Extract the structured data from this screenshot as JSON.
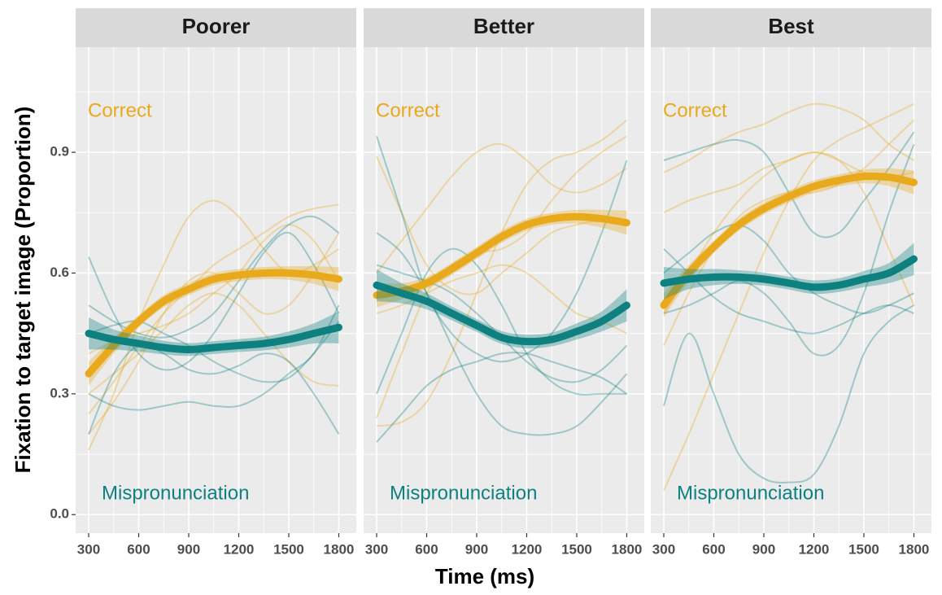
{
  "axis_titles": {
    "x": "Time (ms)",
    "y": "Fixation to target image (Proportion)"
  },
  "chart_data": [
    {
      "type": "line",
      "title": "Poorer",
      "x": [
        300,
        450,
        600,
        750,
        900,
        1050,
        1200,
        1350,
        1500,
        1650,
        1800
      ],
      "xlim": [
        222,
        1905
      ],
      "ylim": [
        -0.046,
        1.161
      ],
      "xticks": [
        300,
        600,
        900,
        1200,
        1500,
        1800
      ],
      "yticks": [
        {
          "value": 0,
          "label": "0.0"
        },
        0.3,
        0.6,
        0.9
      ],
      "grid": true,
      "series": [
        {
          "name": "Correct",
          "color": "#E9A91C",
          "values": [
            0.35,
            0.42,
            0.48,
            0.53,
            0.56,
            0.585,
            0.595,
            0.6,
            0.6,
            0.595,
            0.585
          ],
          "lower": [
            0.32,
            0.4,
            0.465,
            0.515,
            0.545,
            0.57,
            0.58,
            0.585,
            0.583,
            0.573,
            0.555
          ],
          "upper": [
            0.38,
            0.44,
            0.495,
            0.545,
            0.575,
            0.6,
            0.61,
            0.615,
            0.617,
            0.617,
            0.615
          ],
          "individuals": [
            [
              0.16,
              0.3,
              0.48,
              0.62,
              0.74,
              0.78,
              0.74,
              0.66,
              0.6,
              0.62,
              0.66
            ],
            [
              0.25,
              0.33,
              0.42,
              0.5,
              0.56,
              0.62,
              0.66,
              0.7,
              0.74,
              0.76,
              0.77
            ],
            [
              0.4,
              0.43,
              0.45,
              0.47,
              0.5,
              0.55,
              0.6,
              0.68,
              0.72,
              0.68,
              0.58
            ],
            [
              0.3,
              0.35,
              0.4,
              0.46,
              0.52,
              0.55,
              0.52,
              0.45,
              0.38,
              0.33,
              0.32
            ],
            [
              0.2,
              0.28,
              0.38,
              0.5,
              0.58,
              0.6,
              0.55,
              0.5,
              0.52,
              0.6,
              0.7
            ]
          ]
        },
        {
          "name": "Mispronunciation",
          "color": "#0E8080",
          "values": [
            0.45,
            0.435,
            0.425,
            0.415,
            0.41,
            0.415,
            0.42,
            0.425,
            0.435,
            0.45,
            0.465
          ],
          "lower": [
            0.41,
            0.41,
            0.405,
            0.398,
            0.394,
            0.399,
            0.404,
            0.408,
            0.415,
            0.425,
            0.425
          ],
          "upper": [
            0.49,
            0.46,
            0.445,
            0.432,
            0.426,
            0.431,
            0.436,
            0.442,
            0.455,
            0.475,
            0.505
          ],
          "individuals": [
            [
              0.64,
              0.5,
              0.4,
              0.36,
              0.38,
              0.45,
              0.55,
              0.65,
              0.7,
              0.62,
              0.5
            ],
            [
              0.3,
              0.27,
              0.26,
              0.27,
              0.28,
              0.27,
              0.27,
              0.3,
              0.35,
              0.4,
              0.52
            ],
            [
              0.52,
              0.48,
              0.45,
              0.44,
              0.46,
              0.5,
              0.58,
              0.66,
              0.72,
              0.74,
              0.7
            ],
            [
              0.2,
              0.35,
              0.42,
              0.4,
              0.36,
              0.35,
              0.37,
              0.4,
              0.38,
              0.3,
              0.2
            ],
            [
              0.45,
              0.47,
              0.48,
              0.45,
              0.42,
              0.38,
              0.35,
              0.33,
              0.34,
              0.4,
              0.48
            ]
          ]
        }
      ]
    },
    {
      "type": "line",
      "title": "Better",
      "x": [
        300,
        450,
        600,
        750,
        900,
        1050,
        1200,
        1350,
        1500,
        1650,
        1800
      ],
      "xlim": [
        222,
        1905
      ],
      "ylim": [
        -0.046,
        1.161
      ],
      "xticks": [
        300,
        600,
        900,
        1200,
        1500,
        1800
      ],
      "yticks": [
        {
          "value": 0,
          "label": "0.0"
        },
        0.3,
        0.6,
        0.9
      ],
      "grid": true,
      "series": [
        {
          "name": "Correct",
          "color": "#E9A91C",
          "values": [
            0.545,
            0.555,
            0.575,
            0.61,
            0.65,
            0.69,
            0.72,
            0.735,
            0.74,
            0.735,
            0.725
          ],
          "lower": [
            0.515,
            0.535,
            0.56,
            0.595,
            0.635,
            0.675,
            0.705,
            0.72,
            0.723,
            0.713,
            0.695
          ],
          "upper": [
            0.575,
            0.575,
            0.59,
            0.625,
            0.665,
            0.705,
            0.735,
            0.75,
            0.757,
            0.757,
            0.755
          ],
          "individuals": [
            [
              0.22,
              0.23,
              0.28,
              0.4,
              0.55,
              0.7,
              0.82,
              0.88,
              0.9,
              0.93,
              0.98
            ],
            [
              0.89,
              0.75,
              0.62,
              0.56,
              0.55,
              0.6,
              0.65,
              0.7,
              0.72,
              0.73,
              0.72
            ],
            [
              0.6,
              0.68,
              0.76,
              0.84,
              0.9,
              0.92,
              0.88,
              0.82,
              0.8,
              0.82,
              0.86
            ],
            [
              0.24,
              0.4,
              0.55,
              0.62,
              0.65,
              0.66,
              0.7,
              0.78,
              0.85,
              0.9,
              0.94
            ],
            [
              0.5,
              0.52,
              0.55,
              0.58,
              0.6,
              0.62,
              0.6,
              0.55,
              0.5,
              0.48,
              0.45
            ]
          ]
        },
        {
          "name": "Mispronunciation",
          "color": "#0E8080",
          "values": [
            0.57,
            0.55,
            0.53,
            0.5,
            0.47,
            0.44,
            0.43,
            0.435,
            0.455,
            0.48,
            0.52
          ],
          "lower": [
            0.53,
            0.525,
            0.51,
            0.483,
            0.454,
            0.424,
            0.413,
            0.418,
            0.435,
            0.455,
            0.48
          ],
          "upper": [
            0.61,
            0.575,
            0.55,
            0.517,
            0.486,
            0.456,
            0.447,
            0.452,
            0.475,
            0.505,
            0.56
          ],
          "individuals": [
            [
              0.94,
              0.75,
              0.55,
              0.45,
              0.4,
              0.38,
              0.4,
              0.45,
              0.55,
              0.7,
              0.88
            ],
            [
              0.18,
              0.25,
              0.32,
              0.36,
              0.38,
              0.4,
              0.4,
              0.38,
              0.36,
              0.34,
              0.3
            ],
            [
              0.7,
              0.65,
              0.55,
              0.42,
              0.3,
              0.22,
              0.2,
              0.2,
              0.22,
              0.28,
              0.35
            ],
            [
              0.3,
              0.45,
              0.6,
              0.66,
              0.62,
              0.52,
              0.4,
              0.33,
              0.3,
              0.3,
              0.3
            ],
            [
              0.62,
              0.6,
              0.58,
              0.55,
              0.5,
              0.44,
              0.38,
              0.34,
              0.33,
              0.36,
              0.42
            ]
          ]
        }
      ]
    },
    {
      "type": "line",
      "title": "Best",
      "x": [
        300,
        450,
        600,
        750,
        900,
        1050,
        1200,
        1350,
        1500,
        1650,
        1800
      ],
      "xlim": [
        222,
        1905
      ],
      "ylim": [
        -0.046,
        1.161
      ],
      "xticks": [
        300,
        600,
        900,
        1200,
        1500,
        1800
      ],
      "yticks": [
        {
          "value": 0,
          "label": "0.0"
        },
        0.3,
        0.6,
        0.9
      ],
      "grid": true,
      "series": [
        {
          "name": "Correct",
          "color": "#E9A91C",
          "values": [
            0.52,
            0.6,
            0.665,
            0.72,
            0.76,
            0.79,
            0.815,
            0.83,
            0.84,
            0.838,
            0.825
          ],
          "lower": [
            0.49,
            0.58,
            0.65,
            0.705,
            0.745,
            0.775,
            0.8,
            0.815,
            0.823,
            0.816,
            0.795
          ],
          "upper": [
            0.55,
            0.62,
            0.68,
            0.735,
            0.775,
            0.805,
            0.83,
            0.845,
            0.857,
            0.86,
            0.855
          ],
          "individuals": [
            [
              0.06,
              0.2,
              0.35,
              0.5,
              0.65,
              0.78,
              0.88,
              0.93,
              0.96,
              0.99,
              1.02
            ],
            [
              0.85,
              0.88,
              0.92,
              0.95,
              0.97,
              1.0,
              1.02,
              1.01,
              0.98,
              0.92,
              0.88
            ],
            [
              0.5,
              0.6,
              0.7,
              0.78,
              0.84,
              0.88,
              0.9,
              0.88,
              0.8,
              0.66,
              0.52
            ],
            [
              0.42,
              0.55,
              0.66,
              0.74,
              0.78,
              0.8,
              0.8,
              0.82,
              0.86,
              0.92,
              0.98
            ],
            [
              0.75,
              0.78,
              0.8,
              0.82,
              0.86,
              0.88,
              0.9,
              0.88,
              0.85,
              0.84,
              0.85
            ]
          ]
        },
        {
          "name": "Mispronunciation",
          "color": "#0E8080",
          "values": [
            0.575,
            0.585,
            0.59,
            0.59,
            0.585,
            0.575,
            0.565,
            0.57,
            0.585,
            0.6,
            0.635
          ],
          "lower": [
            0.535,
            0.56,
            0.57,
            0.573,
            0.569,
            0.559,
            0.548,
            0.553,
            0.565,
            0.575,
            0.595
          ],
          "upper": [
            0.615,
            0.61,
            0.61,
            0.607,
            0.601,
            0.591,
            0.582,
            0.587,
            0.605,
            0.625,
            0.675
          ],
          "individuals": [
            [
              0.27,
              0.45,
              0.3,
              0.15,
              0.09,
              0.08,
              0.1,
              0.22,
              0.4,
              0.48,
              0.52
            ],
            [
              0.88,
              0.9,
              0.92,
              0.93,
              0.9,
              0.8,
              0.7,
              0.7,
              0.78,
              0.86,
              0.95
            ],
            [
              0.66,
              0.6,
              0.54,
              0.5,
              0.48,
              0.46,
              0.45,
              0.47,
              0.5,
              0.52,
              0.5
            ],
            [
              0.5,
              0.52,
              0.55,
              0.58,
              0.55,
              0.48,
              0.4,
              0.42,
              0.55,
              0.75,
              0.92
            ],
            [
              0.6,
              0.65,
              0.7,
              0.72,
              0.68,
              0.6,
              0.55,
              0.52,
              0.5,
              0.52,
              0.55
            ]
          ]
        }
      ]
    }
  ]
}
